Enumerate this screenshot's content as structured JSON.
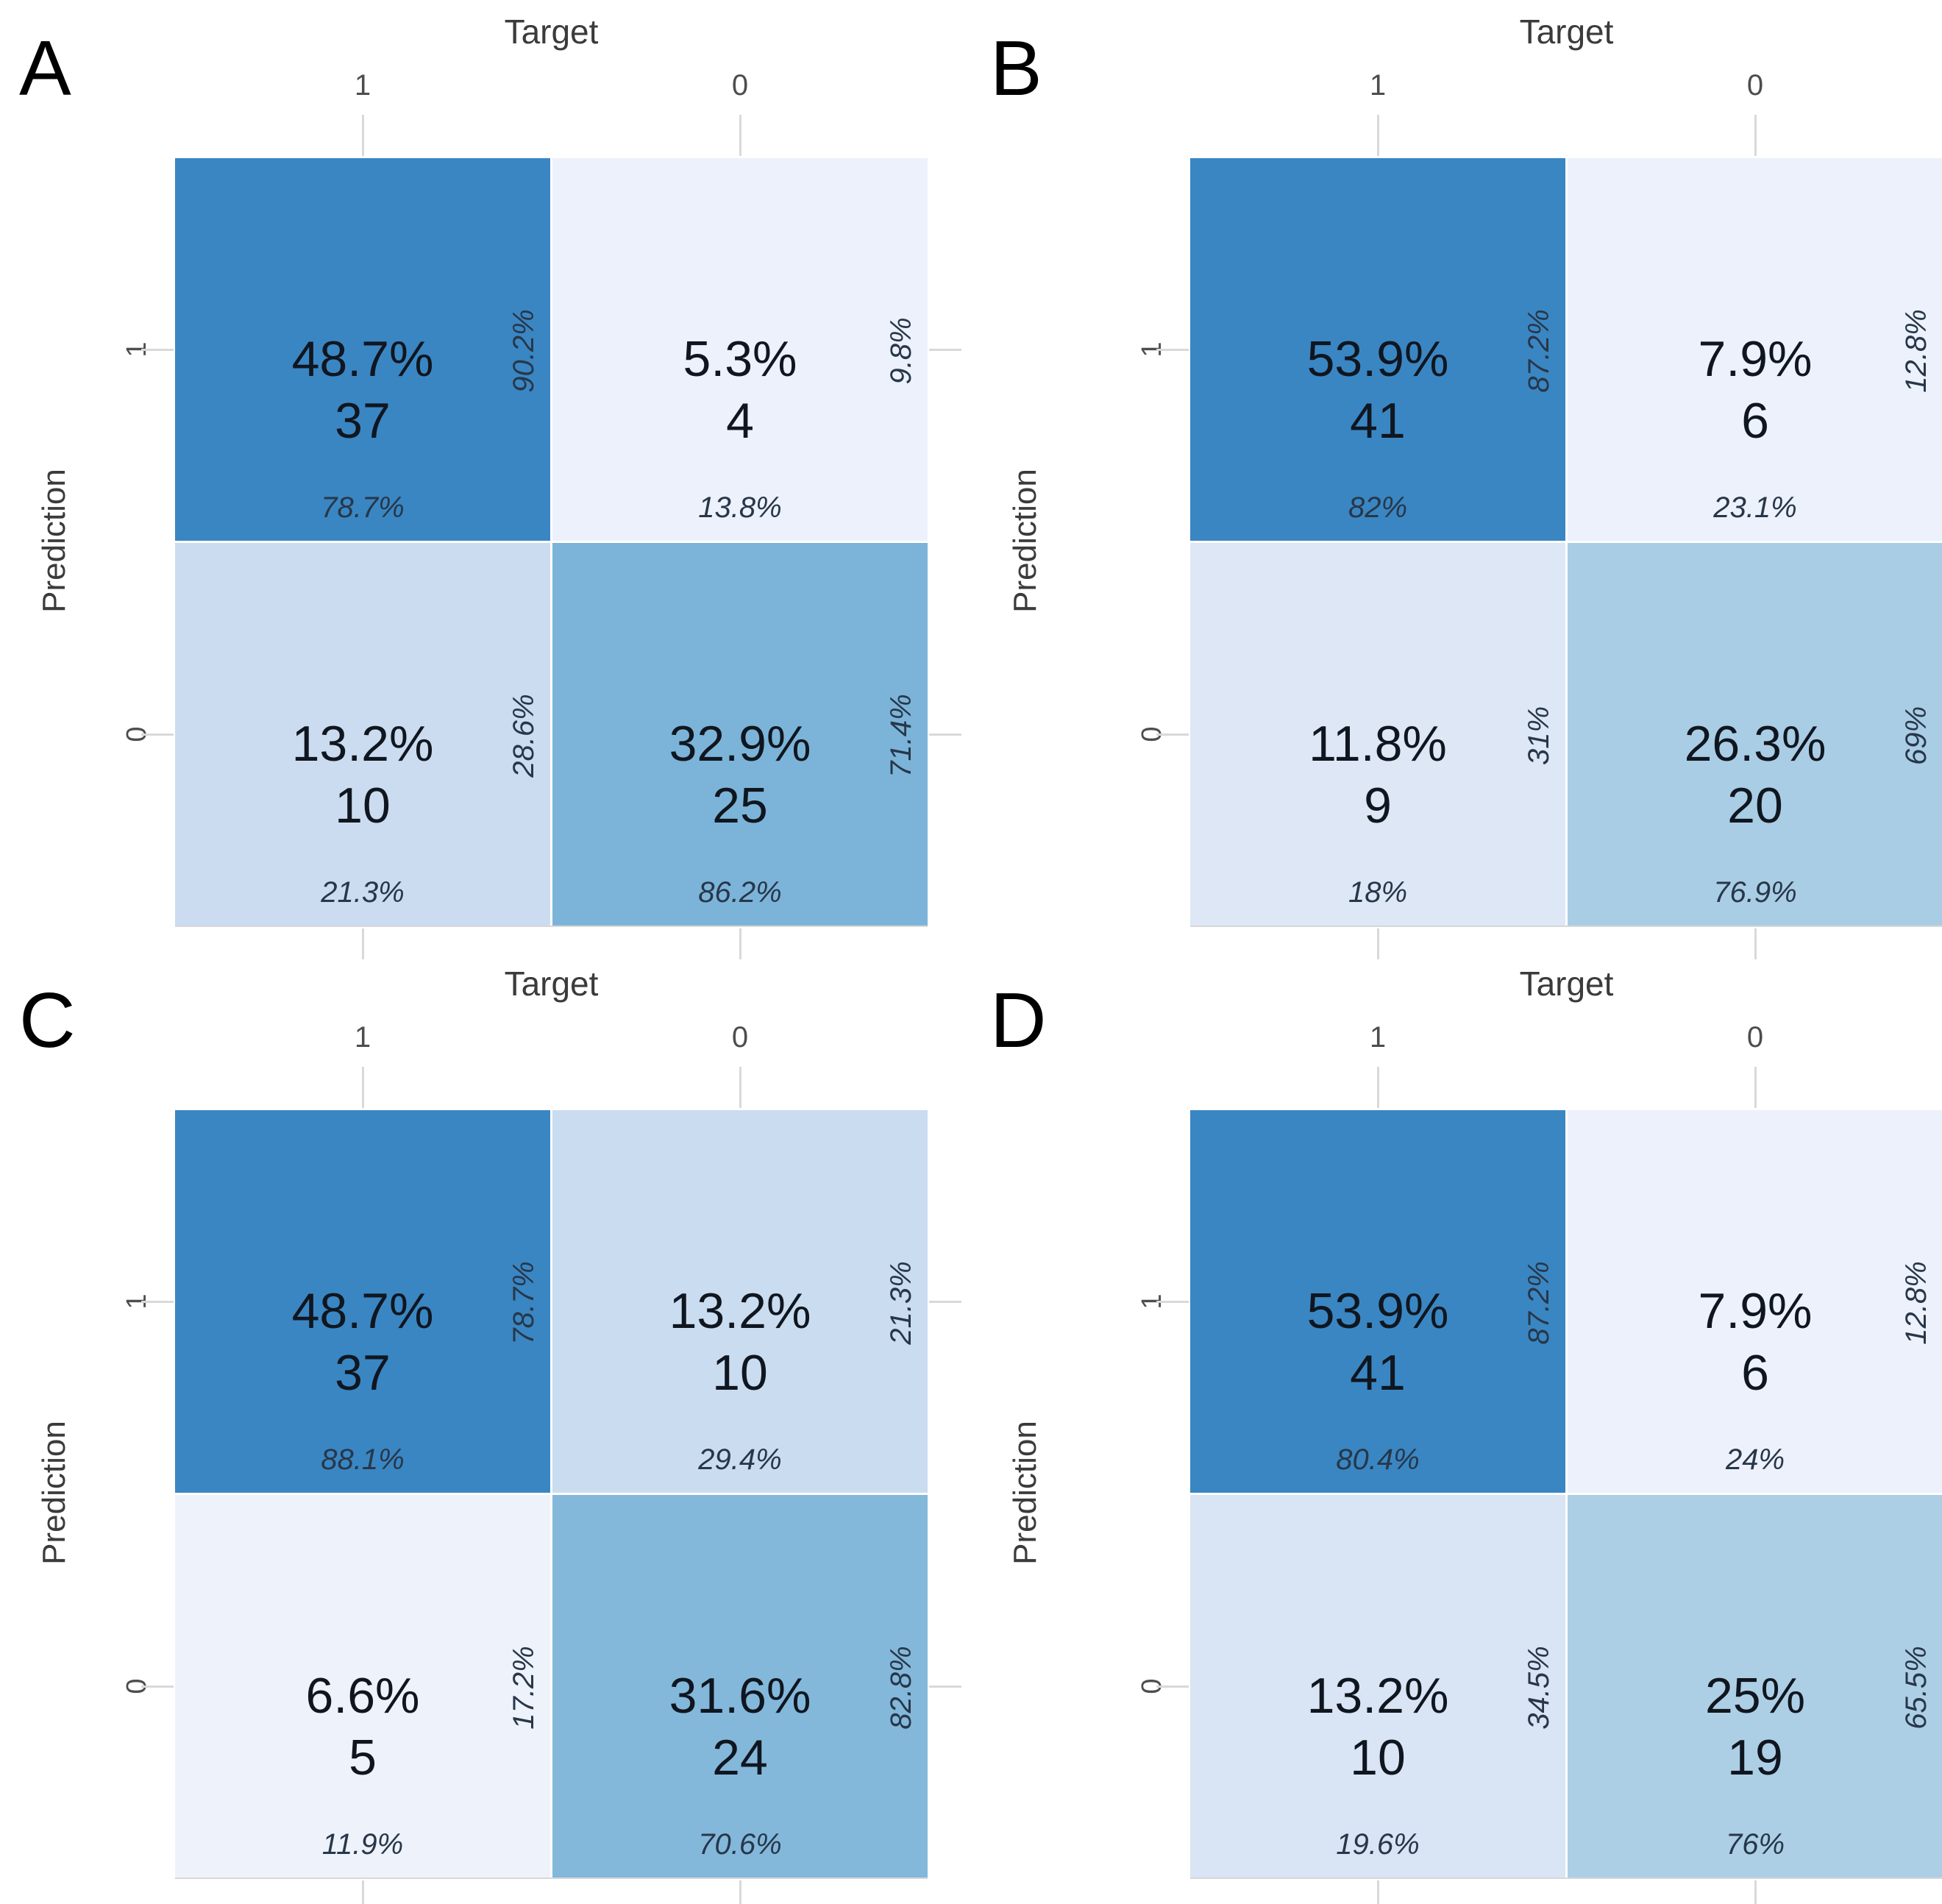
{
  "figure": {
    "x_axis_title": "Target",
    "y_axis_title": "Prediction",
    "col_tick_labels": [
      "1",
      "0"
    ],
    "row_tick_labels": [
      "1",
      "0"
    ],
    "colors": {
      "strong_blue": "#3a86c3",
      "very_light_blue": "#edf1fb",
      "light_blue": "#cbdcf0",
      "medium_blue": "#7cb4d9",
      "tick_gray": "#d9d9d9"
    }
  },
  "chart_data": [
    {
      "type": "heatmap",
      "panel": "A",
      "xlabel": "Target",
      "ylabel": "Prediction",
      "x_ticks": [
        "1",
        "0"
      ],
      "y_ticks": [
        "1",
        "0"
      ],
      "legend": "none",
      "cells": [
        {
          "prediction": "1",
          "target": "1",
          "pct": "48.7%",
          "count": "37",
          "side_pct": "90.2%",
          "bottom_pct": "78.7%",
          "bg": "#3a86c3"
        },
        {
          "prediction": "1",
          "target": "0",
          "pct": "5.3%",
          "count": "4",
          "side_pct": "9.8%",
          "bottom_pct": "13.8%",
          "bg": "#edf1fb"
        },
        {
          "prediction": "0",
          "target": "1",
          "pct": "13.2%",
          "count": "10",
          "side_pct": "28.6%",
          "bottom_pct": "21.3%",
          "bg": "#cbdcf0"
        },
        {
          "prediction": "0",
          "target": "0",
          "pct": "32.9%",
          "count": "25",
          "side_pct": "71.4%",
          "bottom_pct": "86.2%",
          "bg": "#7cb4d9"
        }
      ]
    },
    {
      "type": "heatmap",
      "panel": "B",
      "xlabel": "Target",
      "ylabel": "Prediction",
      "x_ticks": [
        "1",
        "0"
      ],
      "y_ticks": [
        "1",
        "0"
      ],
      "legend": "none",
      "cells": [
        {
          "prediction": "1",
          "target": "1",
          "pct": "53.9%",
          "count": "41",
          "side_pct": "87.2%",
          "bottom_pct": "82%",
          "bg": "#3a86c3"
        },
        {
          "prediction": "1",
          "target": "0",
          "pct": "7.9%",
          "count": "6",
          "side_pct": "12.8%",
          "bottom_pct": "23.1%",
          "bg": "#ecf1fb"
        },
        {
          "prediction": "0",
          "target": "1",
          "pct": "11.8%",
          "count": "9",
          "side_pct": "31%",
          "bottom_pct": "18%",
          "bg": "#dde7f6"
        },
        {
          "prediction": "0",
          "target": "0",
          "pct": "26.3%",
          "count": "20",
          "side_pct": "69%",
          "bottom_pct": "76.9%",
          "bg": "#a9cde5"
        }
      ]
    },
    {
      "type": "heatmap",
      "panel": "C",
      "xlabel": "Target",
      "ylabel": "Prediction",
      "x_ticks": [
        "1",
        "0"
      ],
      "y_ticks": [
        "1",
        "0"
      ],
      "legend": "none",
      "cells": [
        {
          "prediction": "1",
          "target": "1",
          "pct": "48.7%",
          "count": "37",
          "side_pct": "78.7%",
          "bottom_pct": "88.1%",
          "bg": "#3a86c3"
        },
        {
          "prediction": "1",
          "target": "0",
          "pct": "13.2%",
          "count": "10",
          "side_pct": "21.3%",
          "bottom_pct": "29.4%",
          "bg": "#cadcf0"
        },
        {
          "prediction": "0",
          "target": "1",
          "pct": "6.6%",
          "count": "5",
          "side_pct": "17.2%",
          "bottom_pct": "11.9%",
          "bg": "#eef2fb"
        },
        {
          "prediction": "0",
          "target": "0",
          "pct": "31.6%",
          "count": "24",
          "side_pct": "82.8%",
          "bottom_pct": "70.6%",
          "bg": "#83b8db"
        }
      ]
    },
    {
      "type": "heatmap",
      "panel": "D",
      "xlabel": "Target",
      "ylabel": "Prediction",
      "x_ticks": [
        "1",
        "0"
      ],
      "y_ticks": [
        "1",
        "0"
      ],
      "legend": "none",
      "cells": [
        {
          "prediction": "1",
          "target": "1",
          "pct": "53.9%",
          "count": "41",
          "side_pct": "87.2%",
          "bottom_pct": "80.4%",
          "bg": "#3a86c3"
        },
        {
          "prediction": "1",
          "target": "0",
          "pct": "7.9%",
          "count": "6",
          "side_pct": "12.8%",
          "bottom_pct": "24%",
          "bg": "#edf1fb"
        },
        {
          "prediction": "0",
          "target": "1",
          "pct": "13.2%",
          "count": "10",
          "side_pct": "34.5%",
          "bottom_pct": "19.6%",
          "bg": "#d9e4f4"
        },
        {
          "prediction": "0",
          "target": "0",
          "pct": "25%",
          "count": "19",
          "side_pct": "65.5%",
          "bottom_pct": "76%",
          "bg": "#adcfe6"
        }
      ]
    }
  ]
}
